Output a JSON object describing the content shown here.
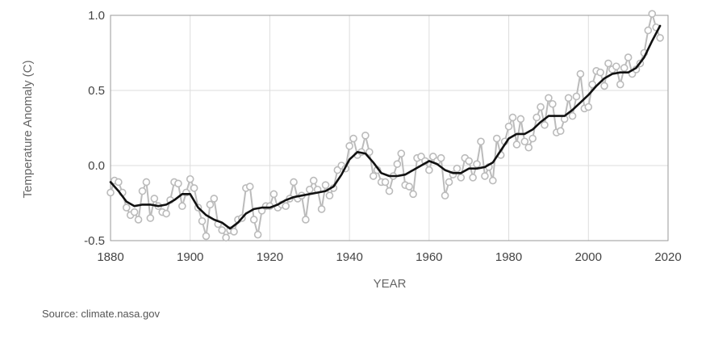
{
  "chart_data": {
    "type": "line",
    "title": "",
    "xlabel": "YEAR",
    "ylabel": "Temperature Anomaly (C)",
    "xlim": [
      1880,
      2020
    ],
    "ylim": [
      -0.5,
      1.0
    ],
    "x_ticks": [
      1880,
      1900,
      1920,
      1940,
      1960,
      1980,
      2000,
      2020
    ],
    "y_ticks": [
      {
        "value": 1.0,
        "label": "1.0"
      },
      {
        "value": 0.5,
        "label": "0.5"
      },
      {
        "value": 0.0,
        "label": "0.0"
      },
      {
        "value": -0.5,
        "label": "-0.5"
      }
    ],
    "grid": true,
    "legend": "none",
    "colors": {
      "annual": "#bbbbbb",
      "smoothed": "#111111",
      "grid": "#dddddd",
      "axis": "#999999"
    },
    "series": [
      {
        "x": [
          1880,
          1881,
          1882,
          1883,
          1884,
          1885,
          1886,
          1887,
          1888,
          1889,
          1890,
          1891,
          1892,
          1893,
          1894,
          1895,
          1896,
          1897,
          1898,
          1899,
          1900,
          1901,
          1902,
          1903,
          1904,
          1905,
          1906,
          1907,
          1908,
          1909,
          1910,
          1911,
          1912,
          1913,
          1914,
          1915,
          1916,
          1917,
          1918,
          1919,
          1920,
          1921,
          1922,
          1923,
          1924,
          1925,
          1926,
          1927,
          1928,
          1929,
          1930,
          1931,
          1932,
          1933,
          1934,
          1935,
          1936,
          1937,
          1938,
          1939,
          1940,
          1941,
          1942,
          1943,
          1944,
          1945,
          1946,
          1947,
          1948,
          1949,
          1950,
          1951,
          1952,
          1953,
          1954,
          1955,
          1956,
          1957,
          1958,
          1959,
          1960,
          1961,
          1962,
          1963,
          1964,
          1965,
          1966,
          1967,
          1968,
          1969,
          1970,
          1971,
          1972,
          1973,
          1974,
          1975,
          1976,
          1977,
          1978,
          1979,
          1980,
          1981,
          1982,
          1983,
          1984,
          1985,
          1986,
          1987,
          1988,
          1989,
          1990,
          1991,
          1992,
          1993,
          1994,
          1995,
          1996,
          1997,
          1998,
          1999,
          2000,
          2001,
          2002,
          2003,
          2004,
          2005,
          2006,
          2007,
          2008,
          2009,
          2010,
          2011,
          2012,
          2013,
          2014,
          2015,
          2016,
          2017,
          2018
        ],
        "values": [
          -0.18,
          -0.1,
          -0.11,
          -0.18,
          -0.28,
          -0.33,
          -0.31,
          -0.36,
          -0.17,
          -0.11,
          -0.35,
          -0.22,
          -0.27,
          -0.31,
          -0.32,
          -0.23,
          -0.11,
          -0.12,
          -0.27,
          -0.18,
          -0.09,
          -0.15,
          -0.28,
          -0.37,
          -0.47,
          -0.26,
          -0.22,
          -0.39,
          -0.43,
          -0.48,
          -0.43,
          -0.44,
          -0.36,
          -0.35,
          -0.15,
          -0.14,
          -0.36,
          -0.46,
          -0.3,
          -0.27,
          -0.27,
          -0.19,
          -0.28,
          -0.26,
          -0.27,
          -0.22,
          -0.11,
          -0.22,
          -0.2,
          -0.36,
          -0.16,
          -0.1,
          -0.16,
          -0.29,
          -0.13,
          -0.2,
          -0.15,
          -0.03,
          -0.0,
          -0.02,
          0.13,
          0.18,
          0.07,
          0.09,
          0.2,
          0.09,
          -0.07,
          -0.03,
          -0.11,
          -0.11,
          -0.17,
          -0.07,
          0.01,
          0.08,
          -0.13,
          -0.14,
          -0.19,
          0.05,
          0.06,
          0.03,
          -0.03,
          0.06,
          0.03,
          0.05,
          -0.2,
          -0.11,
          -0.06,
          -0.02,
          -0.08,
          0.05,
          0.03,
          -0.08,
          0.01,
          0.16,
          -0.07,
          -0.01,
          -0.1,
          0.18,
          0.07,
          0.16,
          0.26,
          0.32,
          0.14,
          0.31,
          0.16,
          0.12,
          0.18,
          0.32,
          0.39,
          0.27,
          0.45,
          0.41,
          0.22,
          0.23,
          0.31,
          0.45,
          0.33,
          0.46,
          0.61,
          0.38,
          0.39,
          0.54,
          0.63,
          0.62,
          0.53,
          0.68,
          0.64,
          0.66,
          0.54,
          0.65,
          0.72,
          0.61,
          0.64,
          0.68,
          0.75,
          0.9,
          1.01,
          0.92,
          0.85
        ]
      },
      {
        "x": [
          1880,
          1882,
          1884,
          1886,
          1888,
          1890,
          1892,
          1894,
          1896,
          1898,
          1900,
          1902,
          1904,
          1906,
          1908,
          1910,
          1912,
          1914,
          1916,
          1918,
          1920,
          1922,
          1924,
          1926,
          1928,
          1930,
          1932,
          1934,
          1936,
          1938,
          1940,
          1942,
          1944,
          1946,
          1948,
          1950,
          1952,
          1954,
          1956,
          1958,
          1960,
          1962,
          1964,
          1966,
          1968,
          1970,
          1972,
          1974,
          1976,
          1978,
          1980,
          1982,
          1984,
          1986,
          1988,
          1990,
          1992,
          1994,
          1996,
          1998,
          2000,
          2002,
          2004,
          2006,
          2008,
          2010,
          2012,
          2014,
          2016,
          2018
        ],
        "values": [
          -0.11,
          -0.17,
          -0.24,
          -0.27,
          -0.26,
          -0.26,
          -0.27,
          -0.26,
          -0.23,
          -0.19,
          -0.19,
          -0.28,
          -0.33,
          -0.36,
          -0.38,
          -0.42,
          -0.38,
          -0.32,
          -0.29,
          -0.28,
          -0.28,
          -0.26,
          -0.23,
          -0.21,
          -0.2,
          -0.19,
          -0.18,
          -0.17,
          -0.14,
          -0.06,
          0.04,
          0.09,
          0.08,
          0.02,
          -0.05,
          -0.07,
          -0.07,
          -0.06,
          -0.03,
          0.0,
          0.03,
          0.01,
          -0.03,
          -0.05,
          -0.05,
          -0.02,
          -0.02,
          -0.01,
          0.02,
          0.1,
          0.18,
          0.21,
          0.21,
          0.24,
          0.29,
          0.33,
          0.33,
          0.33,
          0.37,
          0.42,
          0.47,
          0.53,
          0.58,
          0.61,
          0.62,
          0.62,
          0.65,
          0.72,
          0.83,
          0.93
        ]
      }
    ],
    "source": "Source: climate.nasa.gov"
  }
}
